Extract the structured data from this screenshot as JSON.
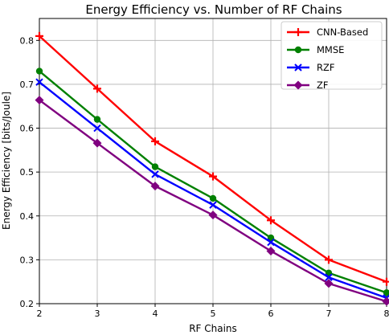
{
  "chart_data": {
    "type": "line",
    "title": "Energy Efficiency vs. Number of RF Chains",
    "xlabel": "RF Chains",
    "ylabel": "Energy Efficiency [bits/Joule]",
    "x": [
      2,
      3,
      4,
      5,
      6,
      7,
      8
    ],
    "xlim": [
      2,
      8
    ],
    "ylim": [
      0.2,
      0.85
    ],
    "xticks": [
      "2",
      "3",
      "4",
      "5",
      "6",
      "7",
      "8"
    ],
    "yticks": [
      "0.2",
      "0.3",
      "0.4",
      "0.5",
      "0.6",
      "0.7",
      "0.8"
    ],
    "grid": true,
    "legend_position": "top-right",
    "series": [
      {
        "name": "CNN-Based",
        "color": "#ff0000",
        "marker": "plus",
        "values": [
          0.81,
          0.69,
          0.57,
          0.49,
          0.39,
          0.3,
          0.25
        ]
      },
      {
        "name": "MMSE",
        "color": "#008000",
        "marker": "circle",
        "values": [
          0.73,
          0.62,
          0.512,
          0.44,
          0.35,
          0.27,
          0.225
        ]
      },
      {
        "name": "RZF",
        "color": "#0000ff",
        "marker": "x",
        "values": [
          0.705,
          0.6,
          0.495,
          0.425,
          0.34,
          0.26,
          0.213
        ]
      },
      {
        "name": "ZF",
        "color": "#800080",
        "marker": "diamond",
        "values": [
          0.664,
          0.566,
          0.468,
          0.402,
          0.32,
          0.246,
          0.205
        ]
      }
    ]
  }
}
